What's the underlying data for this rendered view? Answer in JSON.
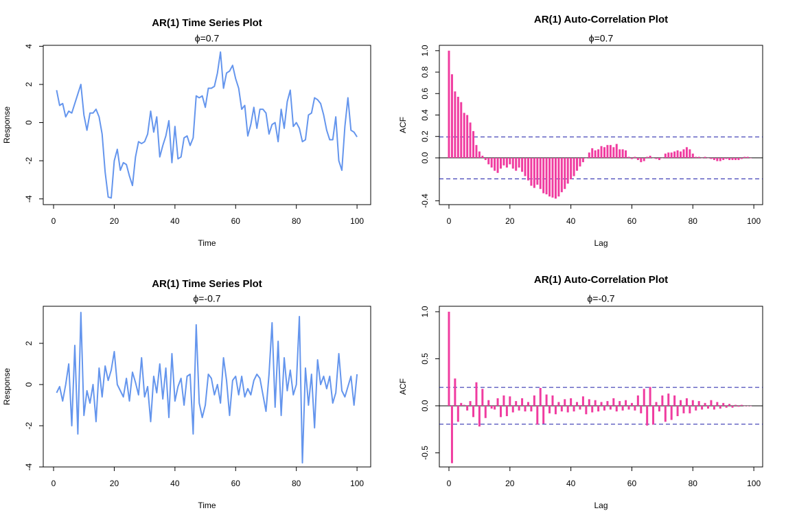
{
  "chart_data": [
    {
      "type": "line",
      "title": "AR(1) Time Series Plot",
      "subtitle": "ϕ=0.7",
      "x_label": "Time",
      "y_label": "Response",
      "color": "#6495ed",
      "x": [
        1,
        2,
        3,
        4,
        5,
        6,
        7,
        8,
        9,
        10,
        11,
        12,
        13,
        14,
        15,
        16,
        17,
        18,
        19,
        20,
        21,
        22,
        23,
        24,
        25,
        26,
        27,
        28,
        29,
        30,
        31,
        32,
        33,
        34,
        35,
        36,
        37,
        38,
        39,
        40,
        41,
        42,
        43,
        44,
        45,
        46,
        47,
        48,
        49,
        50,
        51,
        52,
        53,
        54,
        55,
        56,
        57,
        58,
        59,
        60,
        61,
        62,
        63,
        64,
        65,
        66,
        67,
        68,
        69,
        70,
        71,
        72,
        73,
        74,
        75,
        76,
        77,
        78,
        79,
        80,
        81,
        82,
        83,
        84,
        85,
        86,
        87,
        88,
        89,
        90,
        91,
        92,
        93,
        94,
        95,
        96,
        97,
        98,
        99,
        100
      ],
      "values": [
        1.7,
        0.9,
        1.0,
        0.3,
        0.6,
        0.5,
        1.0,
        1.5,
        2.0,
        0.4,
        -0.4,
        0.5,
        0.5,
        0.7,
        0.3,
        -0.6,
        -2.6,
        -3.9,
        -3.95,
        -2.0,
        -1.4,
        -2.5,
        -2.1,
        -2.2,
        -2.8,
        -3.3,
        -1.8,
        -1.0,
        -1.1,
        -1.0,
        -0.6,
        0.6,
        -0.5,
        0.3,
        -1.8,
        -1.2,
        -0.7,
        0.1,
        -2.1,
        -0.2,
        -1.9,
        -1.8,
        -0.8,
        -0.7,
        -1.2,
        -0.8,
        1.4,
        1.3,
        1.4,
        0.8,
        1.8,
        1.8,
        1.9,
        2.6,
        3.7,
        1.8,
        2.6,
        2.7,
        3.0,
        2.3,
        1.8,
        0.7,
        0.9,
        -0.7,
        -0.1,
        0.8,
        -0.3,
        0.7,
        0.7,
        0.5,
        -0.6,
        -0.1,
        0.0,
        -1.0,
        0.7,
        -0.3,
        1.1,
        1.7,
        -0.2,
        0.0,
        -0.3,
        -1.0,
        -0.9,
        0.4,
        0.5,
        1.3,
        1.2,
        1.0,
        0.4,
        -0.4,
        -0.9,
        -0.9,
        0.3,
        -2.0,
        -2.5,
        -0.2,
        1.3,
        -0.4,
        -0.5,
        -0.75
      ],
      "xlim": [
        -3.4,
        104.5
      ],
      "ylim": [
        -4.3,
        4.05
      ],
      "xticks": [
        0,
        20,
        40,
        60,
        80,
        100
      ],
      "yticks": [
        -4,
        -2,
        0,
        2,
        4
      ]
    },
    {
      "type": "bar",
      "title": "AR(1) Auto-Correlation Plot",
      "subtitle": "ϕ=0.7",
      "x_label": "Lag",
      "y_label": "ACF",
      "color": "#f03ca0",
      "x": [
        0,
        1,
        2,
        3,
        4,
        5,
        6,
        7,
        8,
        9,
        10,
        11,
        12,
        13,
        14,
        15,
        16,
        17,
        18,
        19,
        20,
        21,
        22,
        23,
        24,
        25,
        26,
        27,
        28,
        29,
        30,
        31,
        32,
        33,
        34,
        35,
        36,
        37,
        38,
        39,
        40,
        41,
        42,
        43,
        44,
        45,
        46,
        47,
        48,
        49,
        50,
        51,
        52,
        53,
        54,
        55,
        56,
        57,
        58,
        59,
        60,
        61,
        62,
        63,
        64,
        65,
        66,
        67,
        68,
        69,
        70,
        71,
        72,
        73,
        74,
        75,
        76,
        77,
        78,
        79,
        80,
        81,
        82,
        83,
        84,
        85,
        86,
        87,
        88,
        89,
        90,
        91,
        92,
        93,
        94,
        95,
        96,
        97,
        98,
        99
      ],
      "values": [
        1.0,
        0.78,
        0.62,
        0.57,
        0.52,
        0.42,
        0.4,
        0.33,
        0.25,
        0.12,
        0.06,
        0.02,
        -0.02,
        -0.06,
        -0.09,
        -0.12,
        -0.14,
        -0.1,
        -0.07,
        -0.09,
        -0.06,
        -0.1,
        -0.12,
        -0.09,
        -0.13,
        -0.17,
        -0.21,
        -0.26,
        -0.28,
        -0.25,
        -0.29,
        -0.33,
        -0.34,
        -0.36,
        -0.37,
        -0.38,
        -0.36,
        -0.32,
        -0.29,
        -0.24,
        -0.2,
        -0.17,
        -0.12,
        -0.08,
        -0.04,
        0.0,
        0.05,
        0.09,
        0.07,
        0.08,
        0.11,
        0.1,
        0.12,
        0.12,
        0.1,
        0.13,
        0.08,
        0.08,
        0.07,
        0.01,
        -0.01,
        0.01,
        -0.02,
        -0.04,
        -0.03,
        0.01,
        0.02,
        0.0,
        -0.01,
        -0.02,
        0.0,
        0.04,
        0.05,
        0.05,
        0.06,
        0.07,
        0.06,
        0.08,
        0.1,
        0.08,
        0.04,
        0.01,
        0.01,
        0.0,
        0.01,
        0.0,
        -0.01,
        -0.02,
        -0.03,
        -0.03,
        -0.02,
        -0.01,
        -0.02,
        -0.02,
        -0.02,
        -0.02,
        -0.01,
        0.01,
        0.01,
        0.0
      ],
      "ci_lines": [
        0.196,
        -0.196
      ],
      "ci_color": "#1c1ca8",
      "xlim": [
        -3.15,
        102.9
      ],
      "ylim": [
        -0.436,
        1.05
      ],
      "xticks": [
        0,
        20,
        40,
        60,
        80,
        100
      ],
      "yticks": [
        -0.4,
        {
          "value": 0,
          "label": "0.0"
        },
        0.2,
        0.4,
        0.6,
        0.8,
        {
          "value": 1,
          "label": "1.0"
        }
      ]
    },
    {
      "type": "line",
      "title": "AR(1) Time Series Plot",
      "subtitle": "ϕ=-0.7",
      "x_label": "Time",
      "y_label": "Response",
      "color": "#6495ed",
      "x": [
        1,
        2,
        3,
        4,
        5,
        6,
        7,
        8,
        9,
        10,
        11,
        12,
        13,
        14,
        15,
        16,
        17,
        18,
        19,
        20,
        21,
        22,
        23,
        24,
        25,
        26,
        27,
        28,
        29,
        30,
        31,
        32,
        33,
        34,
        35,
        36,
        37,
        38,
        39,
        40,
        41,
        42,
        43,
        44,
        45,
        46,
        47,
        48,
        49,
        50,
        51,
        52,
        53,
        54,
        55,
        56,
        57,
        58,
        59,
        60,
        61,
        62,
        63,
        64,
        65,
        66,
        67,
        68,
        69,
        70,
        71,
        72,
        73,
        74,
        75,
        76,
        77,
        78,
        79,
        80,
        81,
        82,
        83,
        84,
        85,
        86,
        87,
        88,
        89,
        90,
        91,
        92,
        93,
        94,
        95,
        96,
        97,
        98,
        99,
        100
      ],
      "values": [
        -0.4,
        -0.1,
        -0.8,
        0.0,
        1.0,
        -2.0,
        1.9,
        -2.4,
        3.5,
        -1.5,
        -0.3,
        -0.9,
        0.0,
        -1.8,
        0.8,
        -0.6,
        0.9,
        0.2,
        0.7,
        1.6,
        0.0,
        -0.3,
        -0.6,
        0.3,
        -0.8,
        0.6,
        0.1,
        -0.5,
        1.3,
        -0.6,
        -0.1,
        -1.8,
        0.4,
        -0.4,
        1.0,
        -0.7,
        0.8,
        -1.6,
        1.5,
        -0.8,
        -0.1,
        0.3,
        -1.0,
        0.4,
        0.5,
        -2.4,
        2.9,
        -0.9,
        -1.6,
        -1.0,
        0.5,
        0.3,
        -0.5,
        0.0,
        -0.9,
        1.3,
        0.2,
        -1.5,
        0.2,
        0.4,
        -0.5,
        0.4,
        -0.6,
        -0.2,
        -0.5,
        0.2,
        0.5,
        0.3,
        -0.5,
        -1.3,
        0.5,
        3.0,
        -1.1,
        2.1,
        -1.5,
        1.3,
        -0.3,
        0.7,
        -0.5,
        0.0,
        3.3,
        -3.8,
        0.8,
        -1.0,
        0.5,
        -2.1,
        1.2,
        0.0,
        0.4,
        -0.2,
        0.4,
        -0.9,
        -0.4,
        1.5,
        -0.3,
        -0.6,
        -0.1,
        0.4,
        -1.0,
        0.5
      ],
      "xlim": [
        -3.4,
        104.5
      ],
      "ylim": [
        -4.0,
        3.8
      ],
      "xticks": [
        0,
        20,
        40,
        60,
        80,
        100
      ],
      "yticks": [
        -4,
        -2,
        0,
        2
      ]
    },
    {
      "type": "bar",
      "title": "AR(1) Auto-Correlation Plot",
      "subtitle": "ϕ=-0.7",
      "x_label": "Lag",
      "y_label": "ACF",
      "color": "#f03ca0",
      "x": [
        0,
        1,
        2,
        3,
        4,
        5,
        6,
        7,
        8,
        9,
        10,
        11,
        12,
        13,
        14,
        15,
        16,
        17,
        18,
        19,
        20,
        21,
        22,
        23,
        24,
        25,
        26,
        27,
        28,
        29,
        30,
        31,
        32,
        33,
        34,
        35,
        36,
        37,
        38,
        39,
        40,
        41,
        42,
        43,
        44,
        45,
        46,
        47,
        48,
        49,
        50,
        51,
        52,
        53,
        54,
        55,
        56,
        57,
        58,
        59,
        60,
        61,
        62,
        63,
        64,
        65,
        66,
        67,
        68,
        69,
        70,
        71,
        72,
        73,
        74,
        75,
        76,
        77,
        78,
        79,
        80,
        81,
        82,
        83,
        84,
        85,
        86,
        87,
        88,
        89,
        90,
        91,
        92,
        93,
        94,
        95,
        96,
        97,
        98,
        99
      ],
      "values": [
        1.0,
        -0.61,
        0.29,
        -0.17,
        0.03,
        0.01,
        -0.05,
        0.05,
        -0.12,
        0.25,
        -0.22,
        0.18,
        -0.13,
        0.06,
        -0.03,
        -0.04,
        0.08,
        -0.12,
        0.11,
        -0.11,
        0.1,
        -0.07,
        0.05,
        -0.05,
        0.08,
        -0.06,
        0.04,
        -0.06,
        0.11,
        -0.2,
        0.19,
        -0.19,
        0.12,
        -0.08,
        0.11,
        -0.09,
        0.04,
        -0.06,
        0.07,
        -0.07,
        0.08,
        -0.06,
        0.04,
        -0.04,
        0.1,
        -0.09,
        0.07,
        -0.07,
        0.06,
        -0.06,
        0.04,
        -0.05,
        0.05,
        -0.04,
        0.08,
        -0.06,
        0.05,
        -0.05,
        0.06,
        -0.04,
        0.03,
        -0.05,
        0.11,
        -0.08,
        0.18,
        -0.21,
        0.2,
        -0.2,
        0.04,
        -0.06,
        0.11,
        -0.17,
        0.13,
        -0.15,
        0.11,
        -0.11,
        0.06,
        -0.08,
        0.08,
        -0.08,
        0.06,
        -0.05,
        0.05,
        -0.04,
        0.03,
        -0.03,
        0.06,
        -0.04,
        0.04,
        -0.03,
        0.03,
        -0.02,
        0.02,
        -0.02,
        0.01,
        -0.01,
        0.01,
        0.0,
        0.0,
        0.0
      ],
      "ci_lines": [
        0.196,
        -0.196
      ],
      "ci_color": "#1c1ca8",
      "xlim": [
        -3.15,
        102.9
      ],
      "ylim": [
        -0.65,
        1.058
      ],
      "xticks": [
        0,
        20,
        40,
        60,
        80,
        100
      ],
      "yticks": [
        -0.5,
        {
          "value": 0,
          "label": "0.0"
        },
        0.5,
        {
          "value": 1,
          "label": "1.0"
        }
      ]
    }
  ]
}
